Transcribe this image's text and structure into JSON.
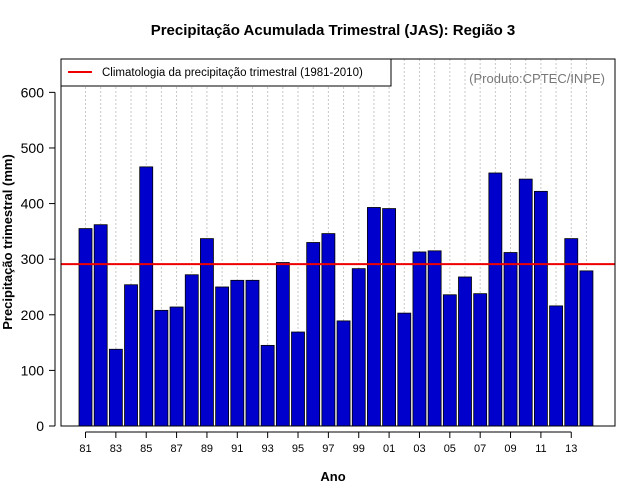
{
  "chart_data": {
    "type": "bar",
    "title": "Precipitação Acumulada Trimestral (JAS): Região 3",
    "xlabel": "Ano",
    "ylabel": "Precipitação trimestral (mm)",
    "ylim": [
      0,
      660
    ],
    "yticks": [
      0,
      100,
      200,
      300,
      400,
      500,
      600
    ],
    "grid": "vertical dotted per year",
    "categories": [
      "81",
      "82",
      "83",
      "84",
      "85",
      "86",
      "87",
      "88",
      "89",
      "90",
      "91",
      "92",
      "93",
      "94",
      "95",
      "96",
      "97",
      "98",
      "99",
      "00",
      "01",
      "02",
      "03",
      "04",
      "05",
      "06",
      "07",
      "08",
      "09",
      "10",
      "11",
      "12",
      "13",
      "14"
    ],
    "x_tick_labels": [
      "81",
      "83",
      "85",
      "87",
      "89",
      "91",
      "93",
      "95",
      "97",
      "99",
      "01",
      "03",
      "05",
      "07",
      "09",
      "11",
      "13"
    ],
    "values": [
      355,
      362,
      138,
      254,
      466,
      208,
      214,
      272,
      337,
      250,
      262,
      262,
      145,
      294,
      169,
      330,
      346,
      189,
      283,
      393,
      391,
      203,
      313,
      315,
      236,
      268,
      238,
      455,
      312,
      444,
      422,
      216,
      337,
      279
    ],
    "bar_color": "#0000cd",
    "reference_line": {
      "label": "Climatologia da precipitação trimestral (1981-2010)",
      "value": 291,
      "color": "#ee0000"
    },
    "legend_position": "top-left",
    "annotation": "(Produto:CPTEC/INPE)"
  }
}
